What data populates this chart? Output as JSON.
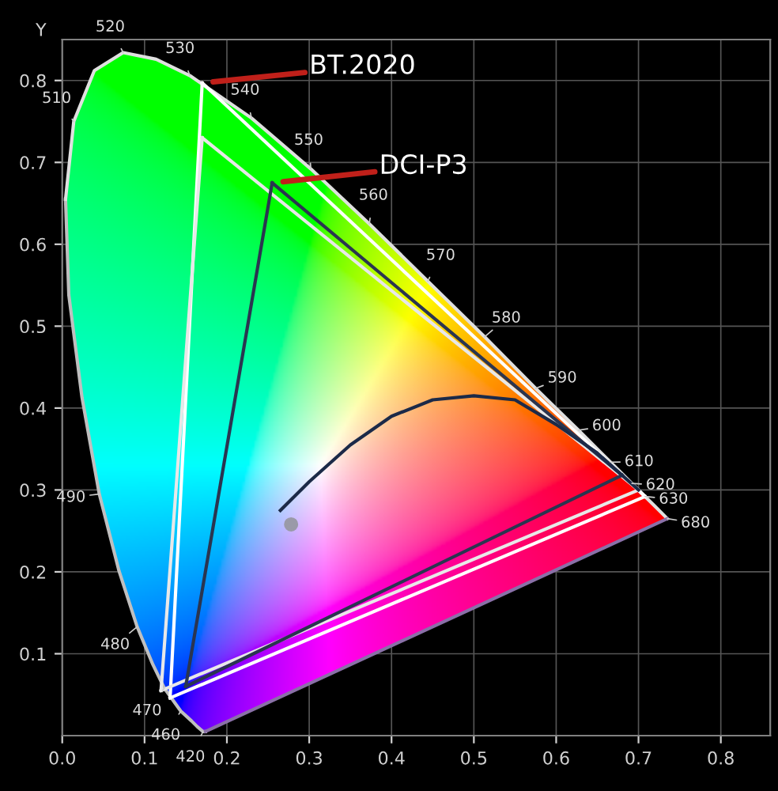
{
  "chart_data": {
    "type": "line",
    "ylabel": "Y",
    "xlim": [
      0,
      0.86
    ],
    "ylim": [
      0,
      0.85
    ],
    "xticks": [
      {
        "value": 0,
        "label": "0.0"
      },
      0.1,
      0.2,
      0.3,
      0.4,
      0.5,
      0.6,
      0.7,
      0.8
    ],
    "yticks": [
      0.1,
      0.2,
      0.3,
      0.4,
      0.5,
      0.6,
      0.7,
      0.8
    ],
    "grid": true,
    "legend": false,
    "marker": "none",
    "line_style": "solid",
    "series": [
      {
        "color": "#bfbfbf",
        "x": [
          0.174,
          0.171,
          0.164,
          0.157,
          0.144,
          0.124,
          0.11,
          0.091,
          0.069,
          0.045,
          0.024,
          0.008,
          0.004
        ],
        "values": [
          0.005,
          0.005,
          0.011,
          0.018,
          0.03,
          0.058,
          0.087,
          0.133,
          0.201,
          0.295,
          0.413,
          0.538,
          0.655
        ]
      },
      {
        "color": "#e0e0e0",
        "x": [
          0.004,
          0.014,
          0.039,
          0.074,
          0.114,
          0.155,
          0.23,
          0.302,
          0.373,
          0.444,
          0.513,
          0.575,
          0.627,
          0.666,
          0.692,
          0.708,
          0.719,
          0.735
        ],
        "values": [
          0.655,
          0.75,
          0.812,
          0.834,
          0.826,
          0.806,
          0.754,
          0.692,
          0.625,
          0.555,
          0.487,
          0.424,
          0.373,
          0.334,
          0.308,
          0.292,
          0.281,
          0.265
        ]
      },
      {
        "color": "#8a70a8",
        "x": [
          0.735,
          0.174
        ],
        "values": [
          0.265,
          0.005
        ]
      },
      {
        "name": "BT.2020",
        "color": "#ffffff",
        "x": [
          0.17,
          0.708
        ],
        "values": [
          0.797,
          0.292
        ]
      },
      {
        "color": "#ffffff",
        "x": [
          0.17,
          0.131
        ],
        "values": [
          0.797,
          0.046
        ]
      },
      {
        "color": "#ffffff",
        "x": [
          0.131,
          0.708
        ],
        "values": [
          0.046,
          0.292
        ]
      },
      {
        "color": "#e8e8e8",
        "x": [
          0.17,
          0.7
        ],
        "values": [
          0.73,
          0.3
        ]
      },
      {
        "color": "#e8e8e8",
        "x": [
          0.17,
          0.12
        ],
        "values": [
          0.73,
          0.055
        ]
      },
      {
        "color": "#e8e8e8",
        "x": [
          0.12,
          0.7
        ],
        "values": [
          0.055,
          0.3
        ]
      },
      {
        "name": "DCI-P3",
        "color": "#2a3550",
        "x": [
          0.255,
          0.68
        ],
        "values": [
          0.675,
          0.318
        ]
      },
      {
        "color": "#2a3550",
        "x": [
          0.255,
          0.15
        ],
        "values": [
          0.675,
          0.06
        ]
      },
      {
        "color": "#2a3550",
        "x": [
          0.15,
          0.68
        ],
        "values": [
          0.06,
          0.318
        ]
      },
      {
        "color": "#1c2a48",
        "x": [
          0.265,
          0.3,
          0.35,
          0.4,
          0.45,
          0.5,
          0.55,
          0.6,
          0.65,
          0.7
        ],
        "values": [
          0.275,
          0.31,
          0.355,
          0.39,
          0.41,
          0.415,
          0.41,
          0.38,
          0.345,
          0.3
        ]
      },
      {
        "type": "scatter",
        "marker": "circle",
        "color": "#9a9aa8",
        "x": [
          0.278
        ],
        "values": [
          0.258
        ]
      }
    ],
    "annotations": [
      {
        "text": "420",
        "x": 0.171,
        "y": 0.005
      },
      {
        "text": "460",
        "x": 0.144,
        "y": 0.03
      },
      {
        "text": "470",
        "x": 0.124,
        "y": 0.058
      },
      {
        "text": "480",
        "x": 0.091,
        "y": 0.133
      },
      {
        "text": "490",
        "x": 0.045,
        "y": 0.295
      },
      {
        "text": "510",
        "x": 0.014,
        "y": 0.75
      },
      {
        "text": "520",
        "x": 0.074,
        "y": 0.834
      },
      {
        "text": "530",
        "x": 0.155,
        "y": 0.806
      },
      {
        "text": "540",
        "x": 0.23,
        "y": 0.754
      },
      {
        "text": "550",
        "x": 0.302,
        "y": 0.692
      },
      {
        "text": "560",
        "x": 0.373,
        "y": 0.625
      },
      {
        "text": "570",
        "x": 0.444,
        "y": 0.555
      },
      {
        "text": "580",
        "x": 0.513,
        "y": 0.487
      },
      {
        "text": "590",
        "x": 0.575,
        "y": 0.424
      },
      {
        "text": "600",
        "x": 0.627,
        "y": 0.373
      },
      {
        "text": "610",
        "x": 0.666,
        "y": 0.334
      },
      {
        "text": "620",
        "x": 0.692,
        "y": 0.308
      },
      {
        "text": "630",
        "x": 0.708,
        "y": 0.292
      },
      {
        "text": "680",
        "x": 0.735,
        "y": 0.265
      }
    ]
  }
}
